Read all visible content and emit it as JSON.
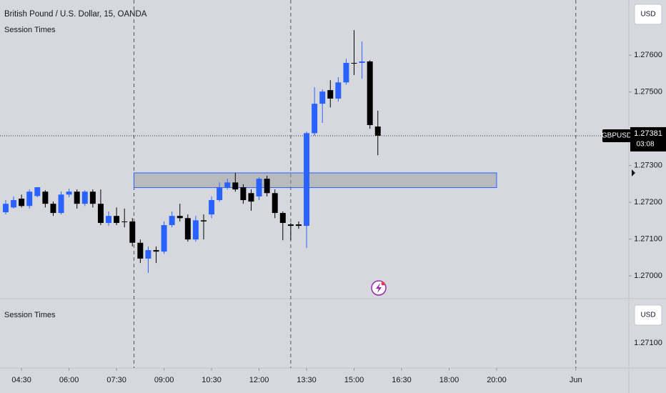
{
  "chart_data": {
    "type": "candlestick",
    "title": "British Pound / U.S. Dollar, 15, OANDA",
    "indicator": "Session Times",
    "currency": "USD",
    "x": [
      0,
      1,
      2,
      3,
      4,
      5,
      6,
      7,
      8,
      9,
      10,
      11,
      12,
      13,
      14,
      15,
      16,
      17,
      18,
      19,
      20,
      21,
      22,
      23,
      24,
      25,
      26,
      27,
      28,
      29,
      30,
      31,
      32,
      33,
      34,
      35,
      36,
      37,
      38,
      39,
      40,
      41,
      42,
      43,
      44,
      45,
      46,
      47
    ],
    "open": [
      1.27173,
      1.27186,
      1.2721,
      1.2719,
      1.27217,
      1.27229,
      1.27196,
      1.27171,
      1.27221,
      1.27229,
      1.27196,
      1.27229,
      1.27196,
      1.27144,
      1.27163,
      1.27148,
      1.27148,
      1.2709,
      1.27047,
      1.2707,
      1.27066,
      1.27138,
      1.27163,
      1.27157,
      1.27099,
      1.27151,
      1.27167,
      1.27206,
      1.27241,
      1.27254,
      1.27241,
      1.27225,
      1.27216,
      1.27264,
      1.27225,
      1.27171,
      1.2714,
      1.2714,
      1.27136,
      1.27388,
      1.27468,
      1.27505,
      1.27482,
      1.27526,
      1.27579,
      1.27579,
      1.27583,
      1.27406
    ],
    "high": [
      1.27206,
      1.27216,
      1.27221,
      1.27235,
      1.27241,
      1.27233,
      1.27202,
      1.27229,
      1.27237,
      1.27235,
      1.27233,
      1.27235,
      1.27235,
      1.27175,
      1.27186,
      1.27183,
      1.27157,
      1.27099,
      1.2708,
      1.2708,
      1.27148,
      1.27175,
      1.27196,
      1.27167,
      1.27163,
      1.27167,
      1.27216,
      1.27254,
      1.27264,
      1.2728,
      1.27249,
      1.27235,
      1.27268,
      1.27272,
      1.27235,
      1.27175,
      1.27144,
      1.27148,
      1.27392,
      1.27513,
      1.27507,
      1.27532,
      1.2754,
      1.2759,
      1.27668,
      1.27637,
      1.27586,
      1.27449
    ],
    "low": [
      1.27167,
      1.27183,
      1.27186,
      1.27183,
      1.27214,
      1.27186,
      1.27163,
      1.27167,
      1.27214,
      1.27183,
      1.2719,
      1.27186,
      1.27138,
      1.27136,
      1.27138,
      1.27132,
      1.2708,
      1.27035,
      1.27008,
      1.27035,
      1.2706,
      1.27132,
      1.27148,
      1.27093,
      1.27093,
      1.27099,
      1.27157,
      1.27202,
      1.27235,
      1.27229,
      1.27196,
      1.27177,
      1.27206,
      1.27216,
      1.27157,
      1.27097,
      1.27097,
      1.27128,
      1.27076,
      1.27381,
      1.27416,
      1.27458,
      1.27474,
      1.2752,
      1.27546,
      1.27536,
      1.274,
      1.27328
    ],
    "close": [
      1.27196,
      1.27206,
      1.2719,
      1.27229,
      1.27241,
      1.27196,
      1.27171,
      1.27221,
      1.27229,
      1.27196,
      1.27229,
      1.27196,
      1.27144,
      1.27163,
      1.27144,
      1.27148,
      1.2709,
      1.27047,
      1.2707,
      1.27066,
      1.27138,
      1.27163,
      1.27157,
      1.27099,
      1.27151,
      1.27148,
      1.27206,
      1.27241,
      1.27254,
      1.27235,
      1.27206,
      1.27202,
      1.27264,
      1.27225,
      1.27171,
      1.27144,
      1.27136,
      1.27136,
      1.27388,
      1.27468,
      1.27501,
      1.27482,
      1.27526,
      1.27579,
      1.27577,
      1.27583,
      1.2741,
      1.27381
    ],
    "up_color": "#2962ff",
    "down_color": "#000000",
    "xlim": [
      -0.72,
      78.7
    ],
    "xticks": [
      {
        "value": 2,
        "label": "04:30"
      },
      {
        "value": 8,
        "label": "06:00"
      },
      {
        "value": 14,
        "label": "07:30"
      },
      {
        "value": 20,
        "label": "09:00"
      },
      {
        "value": 26,
        "label": "10:30"
      },
      {
        "value": 32,
        "label": "12:00"
      },
      {
        "value": 38,
        "label": "13:30"
      },
      {
        "value": 44,
        "label": "15:00"
      },
      {
        "value": 50,
        "label": "16:30"
      },
      {
        "value": 56,
        "label": "18:00"
      },
      {
        "value": 62,
        "label": "20:00"
      },
      {
        "value": 72,
        "label": "Jun"
      }
    ],
    "ylim": [
      1.26938,
      1.2775
    ],
    "yticks": [
      {
        "value": 1.276,
        "label": "1.27600"
      },
      {
        "value": 1.275,
        "label": "1.27500"
      },
      {
        "value": 1.273,
        "label": "1.27300"
      },
      {
        "value": 1.272,
        "label": "1.27200"
      },
      {
        "value": 1.271,
        "label": "1.27100"
      },
      {
        "value": 1.27,
        "label": "1.27000"
      }
    ],
    "session_lines": [
      16.2,
      36,
      72
    ],
    "session_box": {
      "x": [
        16.2,
        62
      ],
      "y": [
        1.2728,
        1.2724
      ]
    },
    "last_price": {
      "symbol": "GBPUSD",
      "value": 1.27381,
      "countdown": "03:08"
    },
    "lower_pane": {
      "title": "Session Times",
      "currency": "USD",
      "price_label": "1.27100"
    }
  }
}
